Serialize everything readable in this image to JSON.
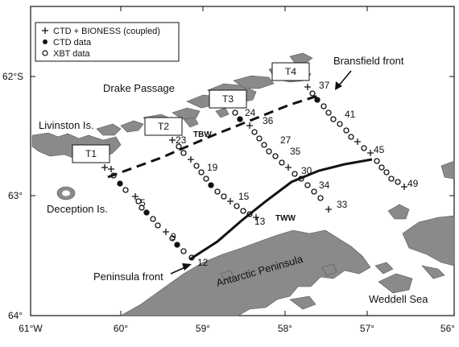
{
  "legend": {
    "items": [
      {
        "symbol": "cross",
        "label": "CTD + BIONESS (coupled)"
      },
      {
        "symbol": "filled-circle",
        "label": "CTD data"
      },
      {
        "symbol": "open-circle",
        "label": "XBT data"
      }
    ]
  },
  "axes": {
    "lat_labels": [
      "62°S",
      "63°",
      "64°"
    ],
    "lon_labels": [
      "61°W",
      "60°",
      "59°",
      "58°",
      "57°",
      "56°"
    ]
  },
  "places": {
    "drake": "Drake Passage",
    "livingston": "Livinston Is.",
    "deception": "Deception Is.",
    "antarctic": "Antarctic Peninsula",
    "weddell": "Weddell Sea",
    "bransfield_front": "Bransfield front",
    "peninsula_front": "Peninsula front",
    "tbw": "TBW",
    "tww": "TWW"
  },
  "transects": [
    "T1",
    "T2",
    "T3",
    "T4"
  ],
  "station_labels": [
    "5",
    "9",
    "12",
    "13",
    "15",
    "19",
    "23",
    "24",
    "27",
    "30",
    "33",
    "34",
    "35",
    "36",
    "37",
    "41",
    "45",
    "49"
  ],
  "colors": {
    "land": "#888888",
    "ink": "#111111",
    "background": "#ffffff"
  }
}
